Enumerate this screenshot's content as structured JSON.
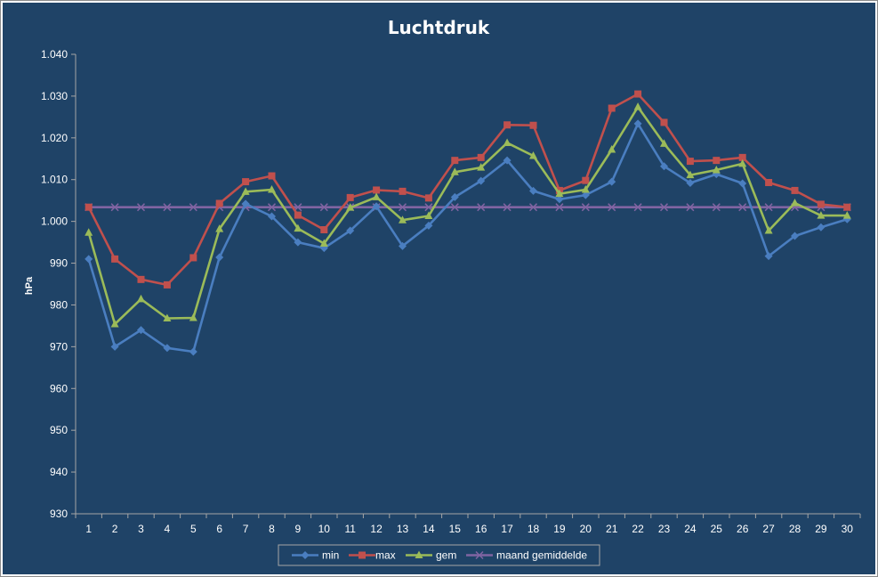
{
  "chart_data": {
    "type": "line",
    "title": "Luchtdruk",
    "xlabel": "",
    "ylabel": "hPa",
    "ylim": [
      930,
      1040
    ],
    "y_ticks": [
      "930",
      "940",
      "950",
      "960",
      "970",
      "980",
      "990",
      "1.000",
      "1.010",
      "1.020",
      "1.030",
      "1.040"
    ],
    "y_tick_values": [
      930,
      940,
      950,
      960,
      970,
      980,
      990,
      1000,
      1010,
      1020,
      1030,
      1040
    ],
    "categories": [
      "1",
      "2",
      "3",
      "4",
      "5",
      "6",
      "7",
      "8",
      "9",
      "10",
      "11",
      "12",
      "13",
      "14",
      "15",
      "16",
      "17",
      "18",
      "19",
      "20",
      "21",
      "22",
      "23",
      "24",
      "25",
      "26",
      "27",
      "28",
      "29",
      "30"
    ],
    "grid": false,
    "legend_position": "bottom",
    "background_color": "#1f4367",
    "series": [
      {
        "name": "min",
        "color": "#4a7ec0",
        "marker": "diamond",
        "values": [
          991,
          970,
          974,
          969.7,
          968.8,
          991.4,
          1004.2,
          1001.2,
          995,
          993.6,
          997.8,
          1003.6,
          994.1,
          999,
          1005.8,
          1009.7,
          1014.6,
          1007.3,
          1005.3,
          1006.3,
          1009.5,
          1023.4,
          1013.2,
          1009.2,
          1011.3,
          1009.1,
          991.7,
          996.5,
          998.6,
          1000.5
        ]
      },
      {
        "name": "max",
        "color": "#c0504d",
        "marker": "square",
        "values": [
          1003.4,
          991,
          986.1,
          984.8,
          991.3,
          1004.3,
          1009.5,
          1010.9,
          1001.5,
          998,
          1005.7,
          1007.5,
          1007.2,
          1005.6,
          1014.6,
          1015.3,
          1023.1,
          1023,
          1007.4,
          1009.8,
          1027.1,
          1030.5,
          1023.7,
          1014.4,
          1014.6,
          1015.3,
          1009.3,
          1007.4,
          1004.1,
          1003.4
        ]
      },
      {
        "name": "gem",
        "color": "#9bbb59",
        "marker": "triangle",
        "values": [
          997.3,
          975.4,
          981.4,
          976.8,
          976.9,
          998.2,
          1007.1,
          1007.6,
          998.3,
          994.7,
          1003.3,
          1005.8,
          1000.3,
          1001.3,
          1011.8,
          1012.9,
          1018.8,
          1015.7,
          1006.6,
          1007.6,
          1017.2,
          1027.4,
          1018.6,
          1011.1,
          1012.3,
          1013.8,
          997.8,
          1004.4,
          1001.4,
          1001.4
        ]
      },
      {
        "name": "maand gemiddelde",
        "color": "#8064a2",
        "marker": "x",
        "values": [
          1003.4,
          1003.4,
          1003.4,
          1003.4,
          1003.4,
          1003.4,
          1003.4,
          1003.4,
          1003.4,
          1003.4,
          1003.4,
          1003.4,
          1003.4,
          1003.4,
          1003.4,
          1003.4,
          1003.4,
          1003.4,
          1003.4,
          1003.4,
          1003.4,
          1003.4,
          1003.4,
          1003.4,
          1003.4,
          1003.4,
          1003.4,
          1003.4,
          1003.4,
          1003.4
        ]
      }
    ]
  }
}
